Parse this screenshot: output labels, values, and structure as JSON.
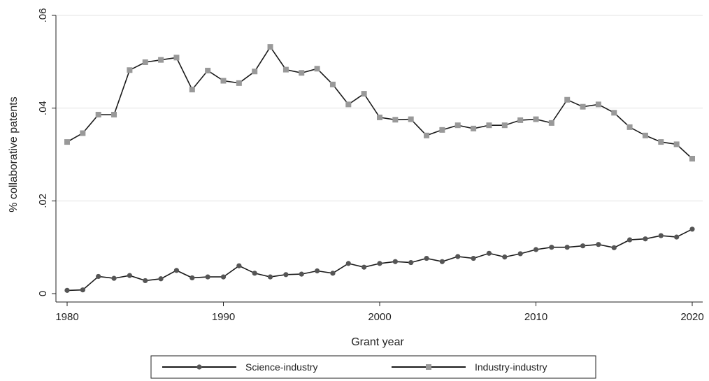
{
  "chart_data": {
    "type": "line",
    "xlabel": "Grant year",
    "ylabel": "% collaborative patents",
    "xlim": [
      1980,
      2020
    ],
    "ylim": [
      0,
      0.06
    ],
    "xticks": [
      1980,
      1990,
      2000,
      2010,
      2020
    ],
    "xtick_labels": [
      "1980",
      "1990",
      "2000",
      "2010",
      "2020"
    ],
    "yticks": [
      0,
      0.02,
      0.04,
      0.06
    ],
    "ytick_labels": [
      "0",
      ".02",
      ".04",
      ".06"
    ],
    "grid": "horizontal",
    "legend_position": "bottom",
    "x": [
      1980,
      1981,
      1982,
      1983,
      1984,
      1985,
      1986,
      1987,
      1988,
      1989,
      1990,
      1991,
      1992,
      1993,
      1994,
      1995,
      1996,
      1997,
      1998,
      1999,
      2000,
      2001,
      2002,
      2003,
      2004,
      2005,
      2006,
      2007,
      2008,
      2009,
      2010,
      2011,
      2012,
      2013,
      2014,
      2015,
      2016,
      2017,
      2018,
      2019,
      2020
    ],
    "series": [
      {
        "name": "Science-industry",
        "marker": "circle",
        "line_color": "#1a1a1a",
        "marker_color": "#555555",
        "values": [
          0.0007,
          0.0008,
          0.0037,
          0.0033,
          0.0039,
          0.0028,
          0.0032,
          0.005,
          0.0034,
          0.0036,
          0.0036,
          0.006,
          0.0044,
          0.0036,
          0.0041,
          0.0042,
          0.0049,
          0.0044,
          0.0065,
          0.0057,
          0.0065,
          0.0069,
          0.0067,
          0.0076,
          0.0069,
          0.008,
          0.0076,
          0.0087,
          0.0079,
          0.0086,
          0.0095,
          0.01,
          0.01,
          0.0103,
          0.0106,
          0.0099,
          0.0116,
          0.0118,
          0.0125,
          0.0122,
          0.0139
        ]
      },
      {
        "name": "Industry-industry",
        "marker": "square",
        "line_color": "#1a1a1a",
        "marker_color": "#999999",
        "values": [
          0.0327,
          0.0346,
          0.0386,
          0.0386,
          0.0482,
          0.0499,
          0.0504,
          0.0509,
          0.044,
          0.0481,
          0.0459,
          0.0454,
          0.0479,
          0.0532,
          0.0483,
          0.0476,
          0.0485,
          0.0451,
          0.0408,
          0.0431,
          0.038,
          0.0375,
          0.0376,
          0.0341,
          0.0353,
          0.0363,
          0.0356,
          0.0363,
          0.0363,
          0.0374,
          0.0376,
          0.0368,
          0.0418,
          0.0403,
          0.0408,
          0.039,
          0.0359,
          0.0341,
          0.0327,
          0.0322,
          0.0291
        ]
      }
    ]
  }
}
